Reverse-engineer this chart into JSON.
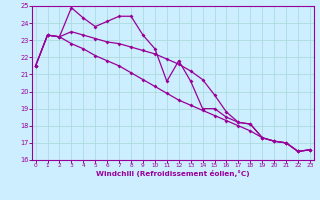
{
  "xlabel": "Windchill (Refroidissement éolien,°C)",
  "bg_color": "#cceeff",
  "line_color": "#990099",
  "grid_color": "#aadddd",
  "xlim": [
    0,
    23
  ],
  "ylim": [
    16,
    25
  ],
  "yticks": [
    16,
    17,
    18,
    19,
    20,
    21,
    22,
    23,
    24,
    25
  ],
  "xticks": [
    0,
    1,
    2,
    3,
    4,
    5,
    6,
    7,
    8,
    9,
    10,
    11,
    12,
    13,
    14,
    15,
    16,
    17,
    18,
    19,
    20,
    21,
    22,
    23
  ],
  "series1_y": [
    21.5,
    23.3,
    23.2,
    24.9,
    24.3,
    23.8,
    24.1,
    24.4,
    24.4,
    23.3,
    22.5,
    20.6,
    21.8,
    20.6,
    19.0,
    19.0,
    18.5,
    18.2,
    18.1,
    17.3,
    17.1,
    17.0,
    16.5,
    16.6
  ],
  "series2_y": [
    21.5,
    23.3,
    23.2,
    23.5,
    23.3,
    23.1,
    22.9,
    22.8,
    22.6,
    22.4,
    22.2,
    21.9,
    21.6,
    21.2,
    20.7,
    19.8,
    18.8,
    18.2,
    18.1,
    17.3,
    17.1,
    17.0,
    16.5,
    16.6
  ],
  "series3_y": [
    21.5,
    23.3,
    23.2,
    22.8,
    22.5,
    22.1,
    21.8,
    21.5,
    21.1,
    20.7,
    20.3,
    19.9,
    19.5,
    19.2,
    18.9,
    18.6,
    18.3,
    18.0,
    17.7,
    17.3,
    17.1,
    17.0,
    16.5,
    16.6
  ]
}
